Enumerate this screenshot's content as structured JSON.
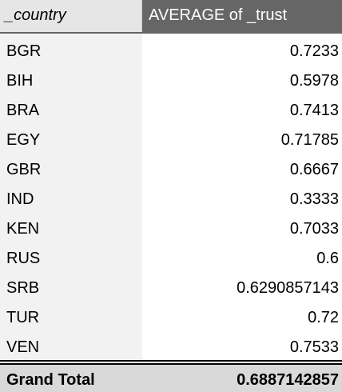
{
  "header": {
    "row_label": "_country",
    "value_label": "AVERAGE of _trust"
  },
  "rows": [
    {
      "country": "BGR",
      "value": "0.7233"
    },
    {
      "country": "BIH",
      "value": "0.5978"
    },
    {
      "country": "BRA",
      "value": "0.7413"
    },
    {
      "country": "EGY",
      "value": "0.71785"
    },
    {
      "country": "GBR",
      "value": "0.6667"
    },
    {
      "country": "IND",
      "value": "0.3333"
    },
    {
      "country": "KEN",
      "value": "0.7033"
    },
    {
      "country": "RUS",
      "value": "0.6"
    },
    {
      "country": "SRB",
      "value": "0.6290857143"
    },
    {
      "country": "TUR",
      "value": "0.72"
    },
    {
      "country": "VEN",
      "value": "0.7533"
    }
  ],
  "total": {
    "label": "Grand Total",
    "value": "0.6887142857"
  },
  "colors": {
    "header_value_bg": "#666666",
    "header_row_bg": "#e6e6e6",
    "row_label_bg": "#f2f2f2",
    "total_bg": "#d9d9d9"
  }
}
